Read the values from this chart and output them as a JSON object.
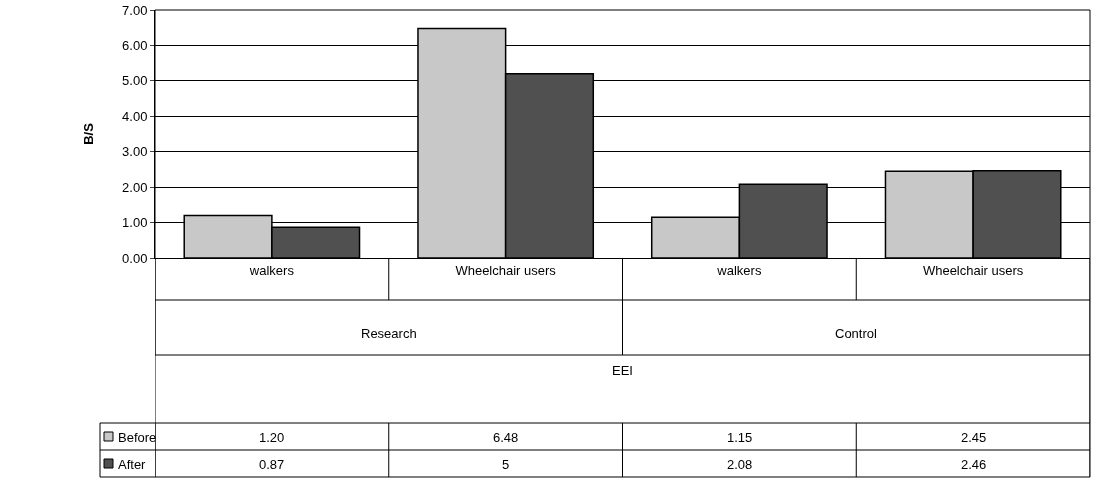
{
  "chart_data": {
    "type": "bar",
    "ylabel": "B/S",
    "legend": "bottom left",
    "categories": [
      "walkers",
      "Wheelchair users",
      "walkers",
      "Wheelchair users"
    ],
    "annotations": [
      "Research",
      "Control",
      "EEI"
    ],
    "series": [
      {
        "name": "Before",
        "color": "#c8c8c8",
        "values": [
          1.2,
          6.48,
          1.15,
          2.45
        ],
        "value_labels": [
          "1.20",
          "6.48",
          "1.15",
          "2.45"
        ]
      },
      {
        "name": "After",
        "color": "#505050",
        "values": [
          0.87,
          5.2,
          2.08,
          2.46
        ],
        "value_labels": [
          "0.87",
          "5",
          "2.08",
          "2.46"
        ]
      }
    ],
    "ylim": [
      0,
      7
    ],
    "yticks": [
      {
        "value": 0,
        "label": "0.00"
      },
      {
        "value": 1,
        "label": "1.00"
      },
      {
        "value": 2,
        "label": "2.00"
      },
      {
        "value": 3,
        "label": "3.00"
      },
      {
        "value": 4,
        "label": "4.00"
      },
      {
        "value": 5,
        "label": "5.00"
      },
      {
        "value": 6,
        "label": "6.00"
      },
      {
        "value": 7,
        "label": "7.00"
      }
    ],
    "grid": "y"
  }
}
